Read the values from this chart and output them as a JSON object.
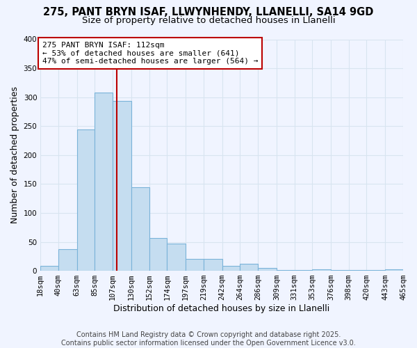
{
  "title": "275, PANT BRYN ISAF, LLWYNHENDY, LLANELLI, SA14 9GD",
  "subtitle": "Size of property relative to detached houses in Llanelli",
  "xlabel": "Distribution of detached houses by size in Llanelli",
  "ylabel": "Number of detached properties",
  "bar_color": "#c5ddf0",
  "bar_edge_color": "#7ab3d9",
  "background_color": "#f0f4ff",
  "grid_color": "#d8e4f0",
  "vline_x": 112,
  "vline_color": "#bb0000",
  "annotation_line1": "275 PANT BRYN ISAF: 112sqm",
  "annotation_line2": "← 53% of detached houses are smaller (641)",
  "annotation_line3": "47% of semi-detached houses are larger (564) →",
  "bin_edges": [
    18,
    40,
    63,
    85,
    107,
    130,
    152,
    174,
    197,
    219,
    242,
    264,
    286,
    309,
    331,
    353,
    376,
    398,
    420,
    443,
    465
  ],
  "bin_counts": [
    8,
    37,
    244,
    308,
    294,
    144,
    57,
    47,
    20,
    20,
    9,
    12,
    5,
    1,
    1,
    2,
    1,
    1,
    1,
    3
  ],
  "xlim": [
    18,
    465
  ],
  "ylim": [
    0,
    400
  ],
  "yticks": [
    0,
    50,
    100,
    150,
    200,
    250,
    300,
    350,
    400
  ],
  "footer1": "Contains HM Land Registry data © Crown copyright and database right 2025.",
  "footer2": "Contains public sector information licensed under the Open Government Licence v3.0.",
  "title_fontsize": 10.5,
  "subtitle_fontsize": 9.5,
  "axis_label_fontsize": 9,
  "tick_fontsize": 7.5,
  "annotation_fontsize": 8,
  "footer_fontsize": 7
}
